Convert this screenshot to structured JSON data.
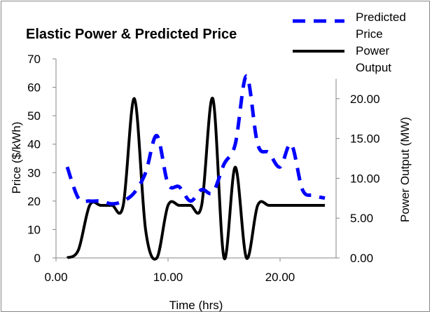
{
  "chart_data": {
    "type": "line",
    "title": "Elastic Power & Predicted Price",
    "xlabel": "Time (hrs)",
    "ylabel": "Price ($/kWh)",
    "y2label": "Power Output (MW)",
    "xlim": [
      0,
      25
    ],
    "ylim": [
      0,
      70
    ],
    "y2lim": [
      0,
      25
    ],
    "x_ticks": [
      "0.00",
      "10.00",
      "20.00"
    ],
    "y_ticks": [
      "0",
      "10",
      "20",
      "30",
      "40",
      "50",
      "60",
      "70"
    ],
    "y2_ticks": [
      "0.00",
      "5.00",
      "10.00",
      "15.00",
      "20.00"
    ],
    "grid": false,
    "legend_position": "top-right",
    "series": [
      {
        "name": "Predicted Price",
        "axis": "left",
        "style": "dashed",
        "color": "#0000ff",
        "x": [
          1,
          2,
          3,
          4,
          5,
          6,
          7,
          8,
          9,
          10,
          11,
          12,
          13,
          14,
          15,
          16,
          17,
          18,
          19,
          20,
          21,
          22,
          23,
          24
        ],
        "y": [
          32,
          21,
          20,
          20,
          19,
          20,
          23,
          30,
          43,
          26,
          25,
          20,
          24,
          23,
          33,
          40,
          64,
          40,
          37,
          32,
          40,
          24,
          22,
          21
        ]
      },
      {
        "name": "Power Output",
        "axis": "right",
        "style": "solid",
        "color": "#000000",
        "x": [
          1,
          2,
          3,
          4,
          5,
          6,
          7,
          8,
          9,
          10,
          11,
          12,
          13,
          14,
          15,
          16,
          17,
          18,
          19,
          20,
          21,
          22,
          23,
          24
        ],
        "y": [
          0,
          1,
          6.6,
          6.6,
          6.6,
          6.6,
          20,
          3.5,
          0,
          6.6,
          6.6,
          6.6,
          6.6,
          20,
          0,
          11.4,
          0,
          6.6,
          6.6,
          6.6,
          6.6,
          6.6,
          6.6,
          6.6
        ]
      }
    ]
  }
}
